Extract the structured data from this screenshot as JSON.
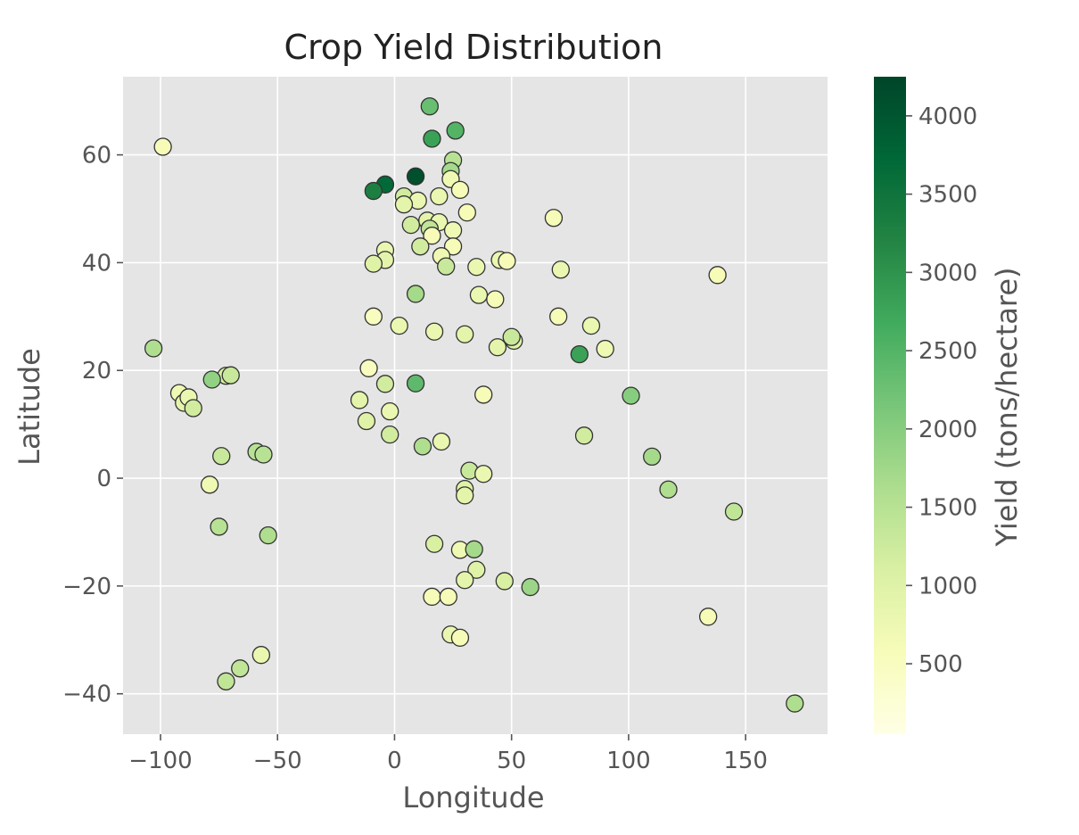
{
  "chart_data": {
    "type": "scatter",
    "title": "Crop Yield Distribution",
    "xlabel": "Longitude",
    "ylabel": "Latitude",
    "xlim": [
      -116,
      185
    ],
    "ylim": [
      -47.5,
      74.5
    ],
    "xticks": [
      -100,
      -50,
      0,
      50,
      100,
      150
    ],
    "yticks": [
      -40,
      -20,
      0,
      20,
      40,
      60
    ],
    "xtick_labels": [
      "−100",
      "−50",
      "0",
      "50",
      "100",
      "150"
    ],
    "ytick_labels": [
      "−40",
      "−20",
      "0",
      "20",
      "40",
      "60"
    ],
    "grid": true,
    "colorbar": {
      "label": "Yield (tons/hectare)",
      "colormap": "YlGn",
      "range": [
        50,
        4250
      ],
      "ticks": [
        500,
        1000,
        1500,
        2000,
        2500,
        3000,
        3500,
        4000
      ],
      "tick_labels": [
        "500",
        "1000",
        "1500",
        "2000",
        "2500",
        "3000",
        "3500",
        "4000"
      ]
    },
    "points": [
      {
        "x": -99,
        "y": 61.5,
        "v": 600
      },
      {
        "x": 15,
        "y": 69,
        "v": 2300
      },
      {
        "x": 26,
        "y": 64.5,
        "v": 2500
      },
      {
        "x": 16,
        "y": 63,
        "v": 2800
      },
      {
        "x": 25,
        "y": 59,
        "v": 1500
      },
      {
        "x": 24,
        "y": 57,
        "v": 1700
      },
      {
        "x": 9,
        "y": 56,
        "v": 4100
      },
      {
        "x": 24,
        "y": 55.5,
        "v": 700
      },
      {
        "x": -4,
        "y": 54.5,
        "v": 3700
      },
      {
        "x": 28,
        "y": 53.5,
        "v": 600
      },
      {
        "x": -9,
        "y": 53.3,
        "v": 3300
      },
      {
        "x": 19,
        "y": 52.3,
        "v": 800
      },
      {
        "x": 4,
        "y": 52.3,
        "v": 1200
      },
      {
        "x": 10,
        "y": 51.5,
        "v": 800
      },
      {
        "x": 4,
        "y": 50.8,
        "v": 900
      },
      {
        "x": 31,
        "y": 49.3,
        "v": 600
      },
      {
        "x": 68,
        "y": 48.3,
        "v": 600
      },
      {
        "x": 14,
        "y": 47.8,
        "v": 900
      },
      {
        "x": 19,
        "y": 47.5,
        "v": 800
      },
      {
        "x": 7,
        "y": 47,
        "v": 1200
      },
      {
        "x": 15,
        "y": 46.3,
        "v": 1400
      },
      {
        "x": 25,
        "y": 46,
        "v": 700
      },
      {
        "x": 16,
        "y": 45,
        "v": 600
      },
      {
        "x": 25,
        "y": 43,
        "v": 600
      },
      {
        "x": 11,
        "y": 43,
        "v": 1200
      },
      {
        "x": -4,
        "y": 42.3,
        "v": 800
      },
      {
        "x": 20,
        "y": 41.2,
        "v": 700
      },
      {
        "x": -4,
        "y": 40.5,
        "v": 900
      },
      {
        "x": 45,
        "y": 40.5,
        "v": 800
      },
      {
        "x": 48,
        "y": 40.3,
        "v": 600
      },
      {
        "x": -9,
        "y": 39.8,
        "v": 1000
      },
      {
        "x": 22,
        "y": 39.3,
        "v": 1300
      },
      {
        "x": 35,
        "y": 39.2,
        "v": 800
      },
      {
        "x": 71,
        "y": 38.7,
        "v": 800
      },
      {
        "x": 138,
        "y": 37.7,
        "v": 600
      },
      {
        "x": 9,
        "y": 34.2,
        "v": 1700
      },
      {
        "x": 36,
        "y": 34,
        "v": 800
      },
      {
        "x": 43,
        "y": 33.2,
        "v": 600
      },
      {
        "x": -9,
        "y": 30,
        "v": 500
      },
      {
        "x": 70,
        "y": 30,
        "v": 600
      },
      {
        "x": 2,
        "y": 28.3,
        "v": 800
      },
      {
        "x": 84,
        "y": 28.3,
        "v": 800
      },
      {
        "x": 17,
        "y": 27.2,
        "v": 800
      },
      {
        "x": 30,
        "y": 26.7,
        "v": 900
      },
      {
        "x": 51,
        "y": 25.5,
        "v": 1000
      },
      {
        "x": 50,
        "y": 26.2,
        "v": 1300
      },
      {
        "x": 44,
        "y": 24.3,
        "v": 900
      },
      {
        "x": -103,
        "y": 24.1,
        "v": 1600
      },
      {
        "x": 90,
        "y": 24,
        "v": 700
      },
      {
        "x": 79,
        "y": 23,
        "v": 2800
      },
      {
        "x": -11,
        "y": 20.4,
        "v": 500
      },
      {
        "x": -72,
        "y": 19,
        "v": 1100
      },
      {
        "x": -70,
        "y": 19.1,
        "v": 1300
      },
      {
        "x": -78,
        "y": 18.3,
        "v": 1900
      },
      {
        "x": 9,
        "y": 17.6,
        "v": 2400
      },
      {
        "x": -4,
        "y": 17.5,
        "v": 1200
      },
      {
        "x": -92,
        "y": 15.8,
        "v": 700
      },
      {
        "x": 38,
        "y": 15.5,
        "v": 600
      },
      {
        "x": 101,
        "y": 15.3,
        "v": 2000
      },
      {
        "x": -90,
        "y": 14,
        "v": 900
      },
      {
        "x": -88,
        "y": 15,
        "v": 800
      },
      {
        "x": -15,
        "y": 14.5,
        "v": 900
      },
      {
        "x": -86,
        "y": 13,
        "v": 1200
      },
      {
        "x": -2,
        "y": 12.4,
        "v": 800
      },
      {
        "x": -12,
        "y": 10.6,
        "v": 1000
      },
      {
        "x": -2,
        "y": 8.1,
        "v": 1200
      },
      {
        "x": 81,
        "y": 7.9,
        "v": 1200
      },
      {
        "x": 20,
        "y": 6.8,
        "v": 800
      },
      {
        "x": 12,
        "y": 5.9,
        "v": 1600
      },
      {
        "x": -59,
        "y": 4.9,
        "v": 1500
      },
      {
        "x": -56,
        "y": 4.4,
        "v": 1500
      },
      {
        "x": -74,
        "y": 4.1,
        "v": 1300
      },
      {
        "x": 110,
        "y": 4,
        "v": 1700
      },
      {
        "x": 32,
        "y": 1.4,
        "v": 1300
      },
      {
        "x": 38,
        "y": 0.8,
        "v": 800
      },
      {
        "x": -79,
        "y": -1.2,
        "v": 700
      },
      {
        "x": 30,
        "y": -2,
        "v": 1000
      },
      {
        "x": 117,
        "y": -2.1,
        "v": 1600
      },
      {
        "x": 30,
        "y": -3.2,
        "v": 900
      },
      {
        "x": 145,
        "y": -6.2,
        "v": 1400
      },
      {
        "x": -75,
        "y": -9,
        "v": 1500
      },
      {
        "x": -54,
        "y": -10.6,
        "v": 1600
      },
      {
        "x": 17,
        "y": -12.2,
        "v": 1100
      },
      {
        "x": 28,
        "y": -13.3,
        "v": 700
      },
      {
        "x": 34,
        "y": -13.2,
        "v": 1700
      },
      {
        "x": 35,
        "y": -17,
        "v": 1000
      },
      {
        "x": 30,
        "y": -18.9,
        "v": 900
      },
      {
        "x": 47,
        "y": -19.1,
        "v": 1100
      },
      {
        "x": 58,
        "y": -20.2,
        "v": 1800
      },
      {
        "x": 16,
        "y": -22,
        "v": 600
      },
      {
        "x": 23,
        "y": -22,
        "v": 600
      },
      {
        "x": 134,
        "y": -25.7,
        "v": 600
      },
      {
        "x": 24,
        "y": -29,
        "v": 800
      },
      {
        "x": 28,
        "y": -29.6,
        "v": 600
      },
      {
        "x": -57,
        "y": -32.8,
        "v": 800
      },
      {
        "x": -66,
        "y": -35.3,
        "v": 1400
      },
      {
        "x": -72,
        "y": -37.7,
        "v": 1400
      },
      {
        "x": 171,
        "y": -41.8,
        "v": 1600
      }
    ]
  }
}
